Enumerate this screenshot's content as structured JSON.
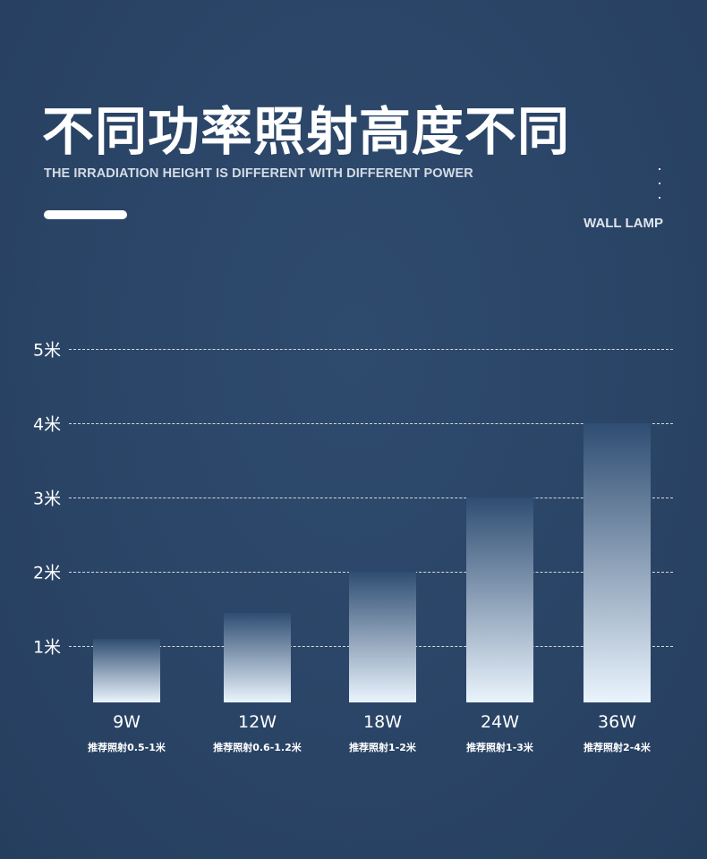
{
  "header": {
    "title": "不同功率照射高度不同",
    "subtitle": "THE IRRADIATION HEIGHT IS DIFFERENT WITH DIFFERENT POWER",
    "tag": "WALL LAMP"
  },
  "chart_data": {
    "type": "bar",
    "title": "不同功率照射高度不同",
    "xlabel": "",
    "ylabel": "",
    "ylim": [
      0,
      5
    ],
    "yticks": [
      1,
      2,
      3,
      4,
      5
    ],
    "ytick_labels": [
      "1米",
      "2米",
      "3米",
      "4米",
      "5米"
    ],
    "grid": true,
    "categories": [
      "9W",
      "12W",
      "18W",
      "24W",
      "36W"
    ],
    "values": [
      1.1,
      1.45,
      2,
      3,
      4
    ],
    "annotations": [
      "推荐照射0.5-1米",
      "推荐照射0.6-1.2米",
      "推荐照射1-2米",
      "推荐照射1-3米",
      "推荐照射2-4米"
    ],
    "colors": {
      "bar_top": "#2f4d72",
      "bar_bottom": "#eaf4fd"
    }
  }
}
